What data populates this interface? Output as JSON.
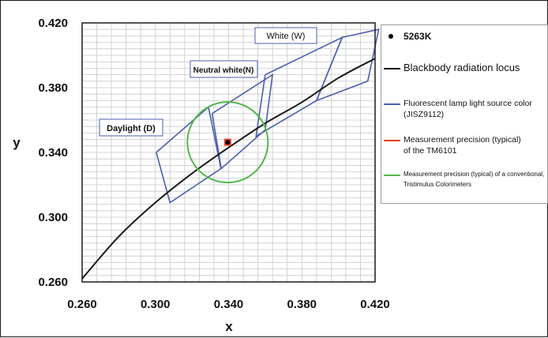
{
  "chart_data": {
    "type": "scatter",
    "xlim": [
      0.26,
      0.42
    ],
    "ylim": [
      0.26,
      0.42
    ],
    "x_ticks": [
      "0.260",
      "0.300",
      "0.340",
      "0.380",
      "0.420"
    ],
    "y_ticks": [
      "0.260",
      "0.300",
      "0.340",
      "0.380",
      "0.420"
    ],
    "xlabel": "x",
    "ylabel": "y",
    "grid": true,
    "legend_position": "right",
    "legend": [
      {
        "label": "5263K",
        "marker": "dot",
        "color": "#000000"
      },
      {
        "label": "Blackbody radiation locus",
        "marker": "line",
        "color": "#000000"
      },
      {
        "label": "Fluorescent lamp light source color (JISZ9112)",
        "marker": "line",
        "color": "#4a5fb0"
      },
      {
        "label": "Measurement precision (typical) of the TM6101",
        "marker": "line",
        "color": "#e8432a"
      },
      {
        "label": "Measurement precision (typical) of a conventional, Tristimulus Colorimeters",
        "marker": "line",
        "color": "#52b848"
      }
    ],
    "point_5263K": {
      "x": 0.3395,
      "y": 0.3463
    },
    "blackbody_locus": {
      "x": [
        0.26,
        0.28,
        0.3,
        0.32,
        0.34,
        0.36,
        0.38,
        0.4,
        0.42
      ],
      "y": [
        0.262,
        0.288,
        0.309,
        0.327,
        0.343,
        0.358,
        0.371,
        0.386,
        0.398
      ]
    },
    "regions": [
      {
        "label": "Daylight (D)",
        "x": [
          0.3005,
          0.329,
          0.3358,
          0.308,
          0.3005
        ],
        "y": [
          0.34,
          0.368,
          0.33,
          0.309,
          0.34
        ]
      },
      {
        "label": "Neutral white(N)",
        "x": [
          0.331,
          0.364,
          0.36,
          0.336,
          0.331
        ],
        "y": [
          0.364,
          0.388,
          0.354,
          0.33,
          0.364
        ]
      },
      {
        "label": "White (W)",
        "x": [
          0.36,
          0.402,
          0.388,
          0.355,
          0.36
        ],
        "y": [
          0.388,
          0.411,
          0.372,
          0.35,
          0.388
        ]
      },
      {
        "label": "",
        "x": [
          0.402,
          0.422,
          0.416,
          0.388,
          0.402
        ],
        "y": [
          0.411,
          0.416,
          0.384,
          0.372,
          0.411
        ]
      }
    ],
    "precision_tm6101": {
      "x": 0.3395,
      "y": 0.3463,
      "radius": 0.002
    },
    "precision_conventional": {
      "x": 0.3395,
      "y": 0.3463,
      "radius": 0.022
    },
    "region_labels": [
      "Daylight (D)",
      "Neutral white(N)",
      "White (W)"
    ],
    "colors": {
      "grid": "#c8c8c8",
      "locus": "#1a1a1a",
      "region": "#4a5fb0",
      "tm6101": "#e8432a",
      "conventional": "#52b848",
      "point": "#000000"
    }
  }
}
